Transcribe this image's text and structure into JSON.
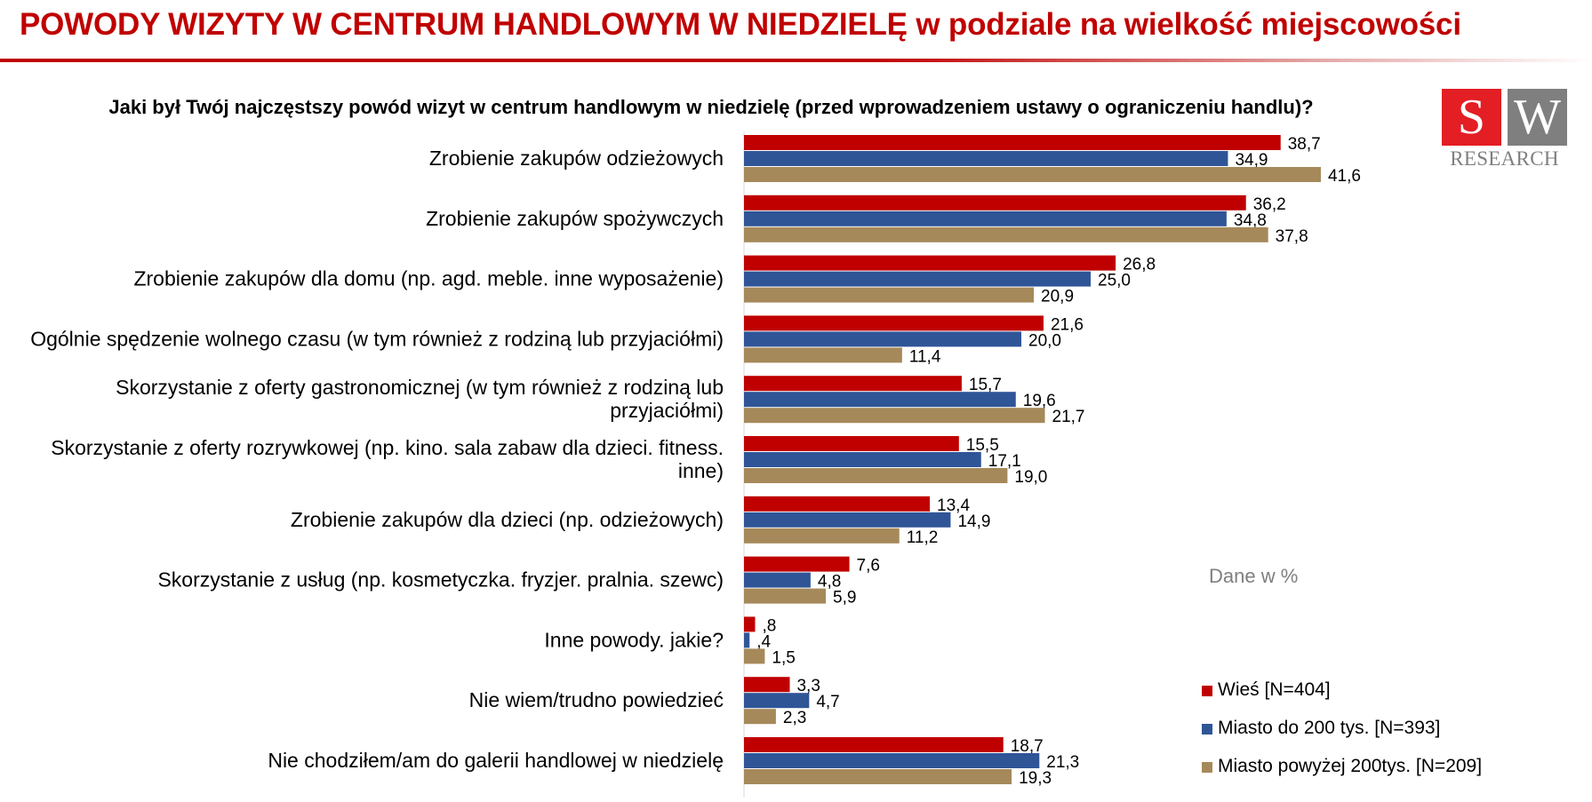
{
  "title": "POWODY WIZYTY W CENTRUM HANDLOWYM W NIEDZIELĘ w podziale na wielkość miejscowości",
  "logo": {
    "letter_left": "S",
    "letter_right": "W",
    "subtitle": "RESEARCH"
  },
  "note": "Dane w %",
  "colors": {
    "title": "#c00000",
    "Wieś": "#c00000",
    "Miasto do 200 tys.": "#2f5597",
    "Miasto powyżej 200tys.": "#a6895a"
  },
  "chart_data": {
    "type": "bar",
    "orientation": "horizontal",
    "title": "Jaki był Twój najczęstszy powód wizyt w centrum handlowym w niedzielę (przed wprowadzeniem ustawy o ograniczeniu handlu)?",
    "categories": [
      "Zrobienie zakupów odzieżowych",
      "Zrobienie zakupów spożywczych",
      "Zrobienie zakupów dla domu (np. agd. meble. inne wyposażenie)",
      "Ogólnie spędzenie wolnego czasu (w tym również z rodziną lub przyjaciółmi)",
      "Skorzystanie z oferty gastronomicznej (w tym również z rodziną lub przyjaciółmi)",
      "Skorzystanie z oferty rozrywkowej (np. kino. sala zabaw dla dzieci. fitness. inne)",
      "Zrobienie zakupów dla dzieci (np. odzieżowych)",
      "Skorzystanie z usług (np. kosmetyczka. fryzjer. pralnia. szewc)",
      "Inne powody. jakie?",
      "Nie wiem/trudno powiedzieć",
      "Nie chodziłem/am do galerii handlowej w niedzielę"
    ],
    "series": [
      {
        "name": "Wieś [N=404]",
        "color": "#c00000",
        "values": [
          38.7,
          36.2,
          26.8,
          21.6,
          15.7,
          15.5,
          13.4,
          7.6,
          0.8,
          3.3,
          18.7
        ],
        "labels": [
          "38,7",
          "36,2",
          "26,8",
          "21,6",
          "15,7",
          "15,5",
          "13,4",
          "7,6",
          ",8",
          "3,3",
          "18,7"
        ]
      },
      {
        "name": "Miasto do 200 tys. [N=393]",
        "color": "#2f5597",
        "values": [
          34.9,
          34.8,
          25.0,
          20.0,
          19.6,
          17.1,
          14.9,
          4.8,
          0.4,
          4.7,
          21.3
        ],
        "labels": [
          "34,9",
          "34,8",
          "25,0",
          "20,0",
          "19,6",
          "17,1",
          "14,9",
          "4,8",
          ",4",
          "4,7",
          "21,3"
        ]
      },
      {
        "name": "Miasto powyżej 200tys. [N=209]",
        "color": "#a6895a",
        "values": [
          41.6,
          37.8,
          20.9,
          11.4,
          21.7,
          19.0,
          11.2,
          5.9,
          1.5,
          2.3,
          19.3
        ],
        "labels": [
          "41,6",
          "37,8",
          "20,9",
          "11,4",
          "21,7",
          "19,0",
          "11,2",
          "5,9",
          "1,5",
          "2,3",
          "19,3"
        ]
      }
    ],
    "xlim": [
      0,
      60
    ],
    "grid": false,
    "legend_position": "bottom-right"
  }
}
